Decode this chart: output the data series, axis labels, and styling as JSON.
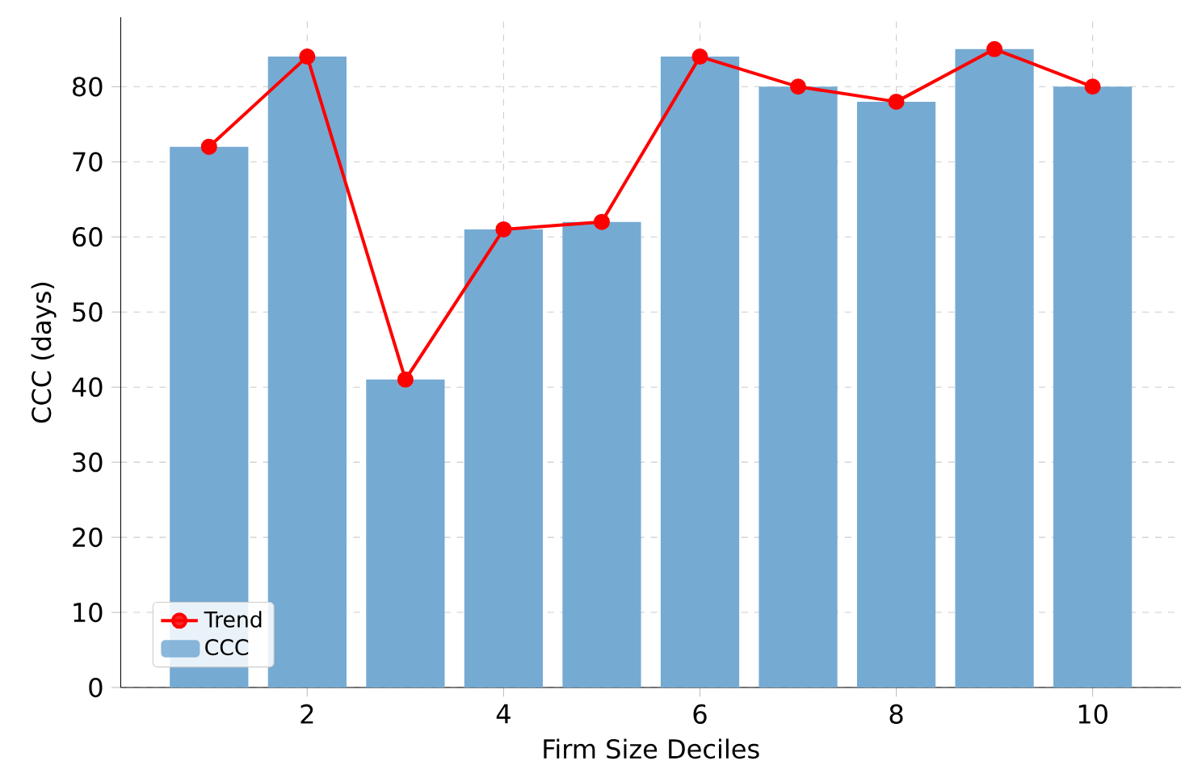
{
  "chart_data": {
    "type": "bar",
    "xlabel": "Firm Size Deciles",
    "ylabel": "CCC (days)",
    "x": [
      1,
      2,
      3,
      4,
      5,
      6,
      7,
      8,
      9,
      10
    ],
    "series": [
      {
        "name": "Trend",
        "type": "line",
        "color": "#ff0000",
        "marker": "circle",
        "values": [
          72,
          84,
          41,
          61,
          62,
          84,
          80,
          78,
          85,
          80
        ]
      },
      {
        "name": "CCC",
        "color": "#75aad3",
        "values": [
          72,
          84,
          41,
          61,
          62,
          84,
          80,
          78,
          85,
          80
        ]
      }
    ],
    "xlim": [
      0.1,
      10.9
    ],
    "ylim": [
      0,
      89.25
    ],
    "xticks": [
      2,
      4,
      6,
      8,
      10
    ],
    "yticks": [
      0,
      10,
      20,
      30,
      40,
      50,
      60,
      70,
      80
    ],
    "grid": true,
    "legend": "bottom left"
  }
}
